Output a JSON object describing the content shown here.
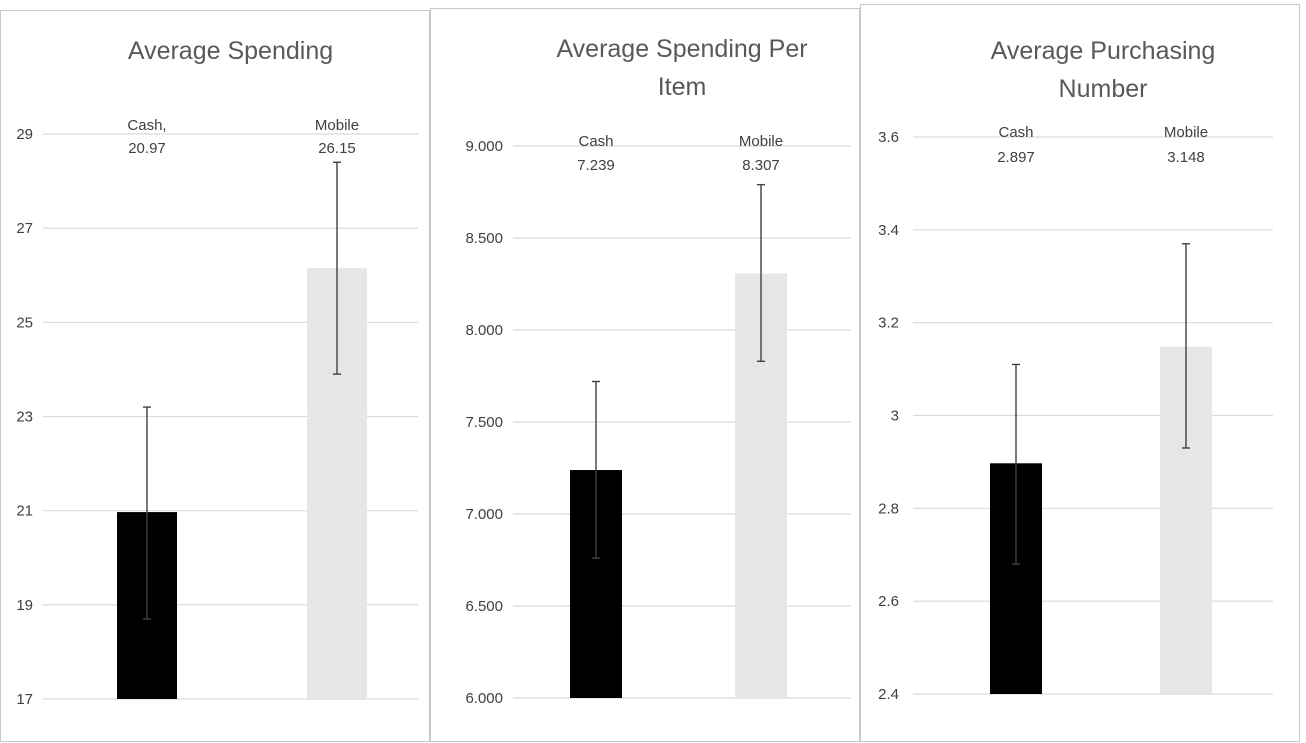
{
  "colors": {
    "cash": "#000000",
    "mobile": "#e6e6e6"
  },
  "chart_data": [
    {
      "type": "bar",
      "title": "Average Spending",
      "categories": [
        "Cash",
        "Mobile"
      ],
      "values": [
        20.97,
        26.15
      ],
      "error_low": [
        18.7,
        23.9
      ],
      "error_high": [
        23.2,
        28.4
      ],
      "data_labels": [
        [
          "Cash,",
          "20.97"
        ],
        [
          "Mobile",
          "26.15"
        ]
      ],
      "ylim": [
        17,
        29
      ],
      "yticks": [
        "17",
        "19",
        "21",
        "23",
        "25",
        "27",
        "29"
      ],
      "grid": true,
      "legend": "none"
    },
    {
      "type": "bar",
      "title": "Average Spending Per Item",
      "categories": [
        "Cash",
        "Mobile"
      ],
      "values": [
        7.239,
        8.307
      ],
      "error_low": [
        6.76,
        7.83
      ],
      "error_high": [
        7.72,
        8.79
      ],
      "data_labels": [
        [
          "Cash",
          "7.239"
        ],
        [
          "Mobile",
          "8.307"
        ]
      ],
      "ylim": [
        6,
        9
      ],
      "yticks": [
        "6.000",
        "6.500",
        "7.000",
        "7.500",
        "8.000",
        "8.500",
        "9.000"
      ],
      "grid": true,
      "legend": "none"
    },
    {
      "type": "bar",
      "title": "Average Purchasing Number",
      "categories": [
        "Cash",
        "Mobile"
      ],
      "values": [
        2.897,
        3.148
      ],
      "error_low": [
        2.68,
        2.93
      ],
      "error_high": [
        3.11,
        3.37
      ],
      "data_labels": [
        [
          "Cash",
          "2.897"
        ],
        [
          "Mobile",
          "3.148"
        ]
      ],
      "ylim": [
        2.4,
        3.6
      ],
      "yticks": [
        "2.4",
        "2.6",
        "2.8",
        "3",
        "3.2",
        "3.4",
        "3.6"
      ],
      "grid": true,
      "legend": "none"
    }
  ]
}
